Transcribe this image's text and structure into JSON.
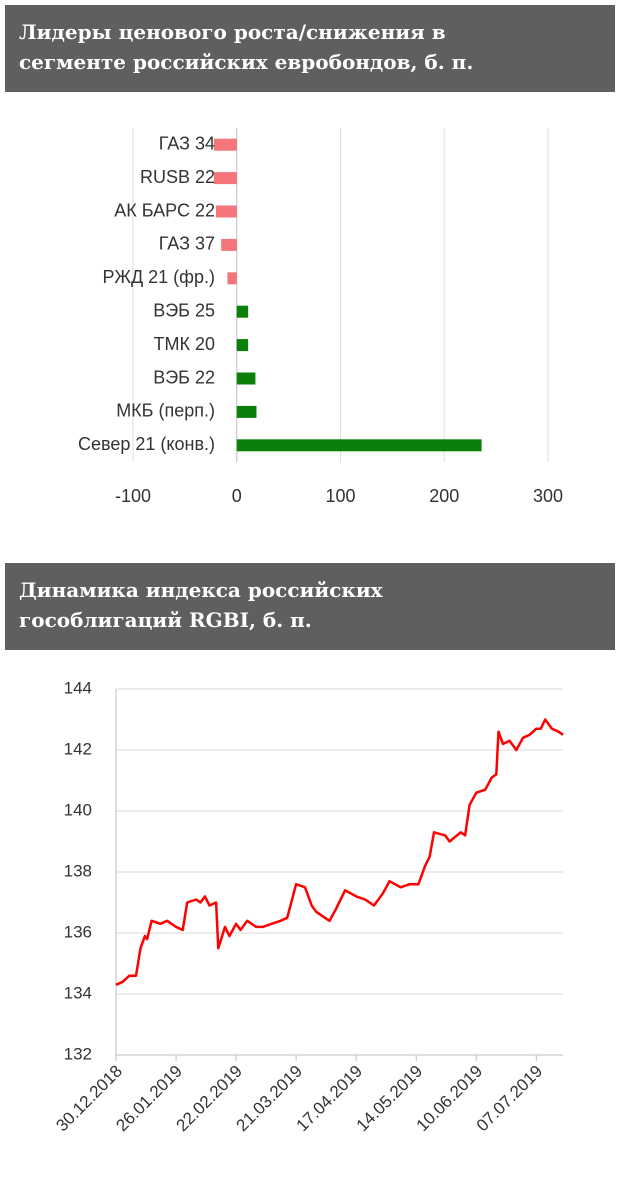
{
  "chart_data": [
    {
      "type": "bar",
      "orientation": "horizontal",
      "title": "Лидеры ценового роста/снижения в сегменте российских евробондов, б. п.",
      "categories": [
        "ГАЗ 34",
        "RUSB 22",
        "АК БАРС 22",
        "ГАЗ 37",
        "РЖД 21 (фр.)",
        "ВЭБ 25",
        "ТМК 20",
        "ВЭБ 22",
        "МКБ (перп.)",
        "Север 21 (конв.)"
      ],
      "values": [
        -22,
        -22,
        -20,
        -15,
        -9,
        11,
        11,
        18,
        19,
        236
      ],
      "colors": {
        "negative": "#f4767b",
        "positive": "#0a800a"
      },
      "xlim": [
        -100,
        300
      ],
      "xticks": [
        -100,
        0,
        100,
        200,
        300
      ],
      "grid": true
    },
    {
      "type": "line",
      "title": "Динамика индекса российских гособлигаций RGBI, б. п.",
      "x": [
        "30.12.2018",
        "02.01.2019",
        "05.01.2019",
        "08.01.2019",
        "10.01.2019",
        "12.01.2019",
        "13.01.2019",
        "15.01.2019",
        "19.01.2019",
        "22.01.2019",
        "26.01.2019",
        "29.01.2019",
        "31.01.2019",
        "04.02.2019",
        "06.02.2019",
        "08.02.2019",
        "10.02.2019",
        "13.02.2019",
        "14.02.2019",
        "17.02.2019",
        "19.02.2019",
        "22.02.2019",
        "24.02.2019",
        "27.02.2019",
        "03.03.2019",
        "06.03.2019",
        "10.03.2019",
        "14.03.2019",
        "17.03.2019",
        "21.03.2019",
        "25.03.2019",
        "28.03.2019",
        "30.03.2019",
        "03.04.2019",
        "05.04.2019",
        "08.04.2019",
        "12.04.2019",
        "17.04.2019",
        "21.04.2019",
        "25.04.2019",
        "29.04.2019",
        "02.05.2019",
        "07.05.2019",
        "11.05.2019",
        "15.05.2019",
        "18.05.2019",
        "20.05.2019",
        "22.05.2019",
        "27.05.2019",
        "29.05.2019",
        "03.06.2019",
        "05.06.2019",
        "07.06.2019",
        "10.06.2019",
        "14.06.2019",
        "17.06.2019",
        "19.06.2019",
        "20.06.2019",
        "22.06.2019",
        "25.06.2019",
        "28.06.2019",
        "01.07.2019",
        "04.07.2019",
        "07.07.2019",
        "09.07.2019",
        "11.07.2019",
        "14.07.2019",
        "17.07.2019",
        "19.07.2019"
      ],
      "values": [
        134.3,
        134.4,
        134.6,
        134.6,
        135.5,
        135.9,
        135.8,
        136.4,
        136.3,
        136.4,
        136.2,
        136.1,
        137.0,
        137.1,
        137.0,
        137.2,
        136.9,
        137.0,
        135.5,
        136.2,
        135.9,
        136.3,
        136.1,
        136.4,
        136.2,
        136.2,
        136.3,
        136.4,
        136.5,
        137.6,
        137.5,
        136.9,
        136.7,
        136.5,
        136.4,
        136.8,
        137.4,
        137.2,
        137.1,
        136.9,
        137.3,
        137.7,
        137.5,
        137.6,
        137.6,
        138.2,
        138.5,
        139.3,
        139.2,
        139.0,
        139.3,
        139.2,
        140.2,
        140.6,
        140.7,
        141.1,
        141.2,
        142.6,
        142.2,
        142.3,
        142.0,
        142.4,
        142.5,
        142.7,
        142.7,
        143.0,
        142.7,
        142.6,
        142.5
      ],
      "color": "#ff0000",
      "xlim": [
        "30.12.2018",
        "19.07.2019"
      ],
      "xticks": [
        "30.12.2018",
        "26.01.2019",
        "22.02.2019",
        "21.03.2019",
        "17.04.2019",
        "14.05.2019",
        "10.06.2019",
        "07.07.2019"
      ],
      "ylim": [
        132,
        144
      ],
      "yticks": [
        132,
        134,
        136,
        138,
        140,
        142,
        144
      ],
      "grid": true
    }
  ]
}
